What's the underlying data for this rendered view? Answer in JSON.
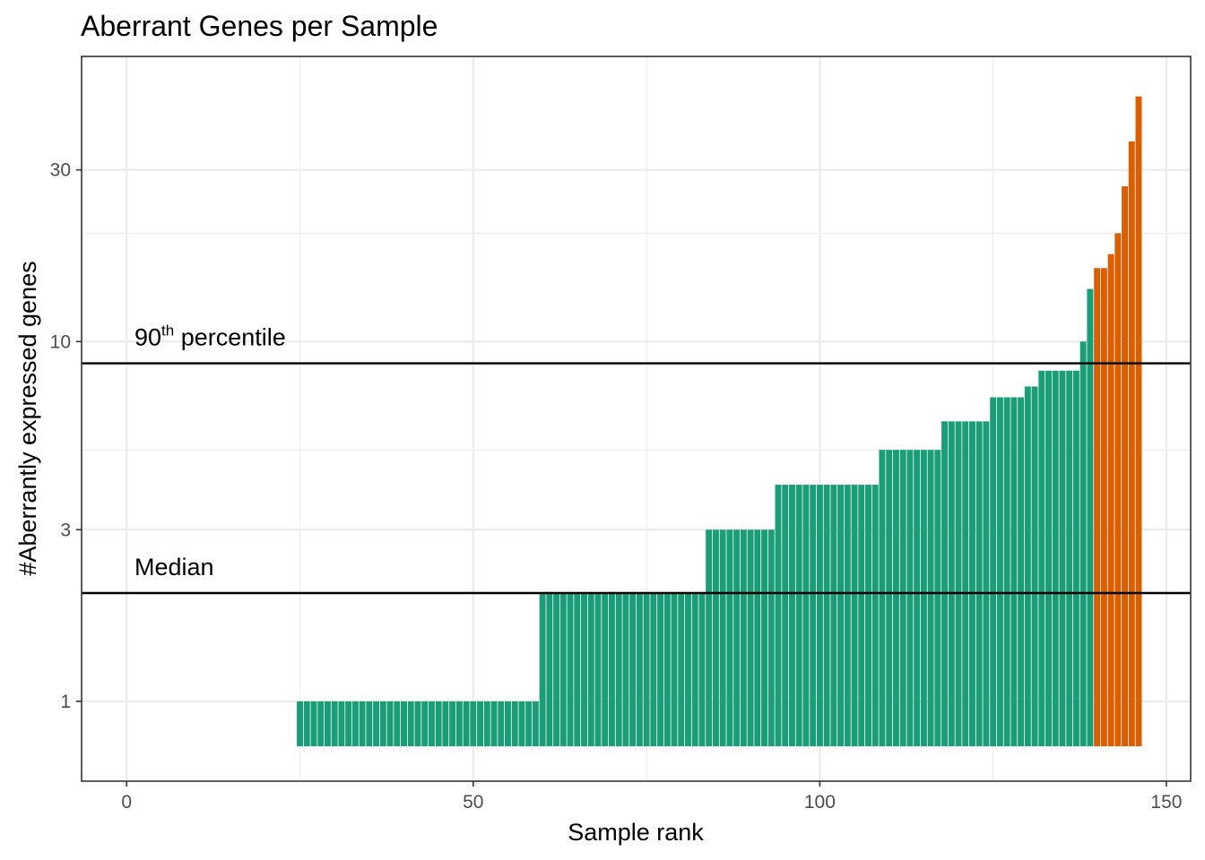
{
  "chart_data": {
    "type": "bar",
    "title": "Aberrant Genes per Sample",
    "xlabel": "Sample rank",
    "ylabel": "#Aberrantly expressed genes",
    "xlim": [
      -6.5,
      153.5
    ],
    "ylim_log": [
      0.6,
      62
    ],
    "y_scale": "log",
    "x_ticks": [
      0,
      50,
      100,
      150
    ],
    "y_ticks": [
      1,
      3,
      10,
      30
    ],
    "y_minor_ticks": [
      2,
      5,
      20
    ],
    "bar_baseline": 0.75,
    "grid": true,
    "colors": {
      "normal": "#1B9E77",
      "aberrant": "#D95F02"
    },
    "series": [
      {
        "range": [
          25,
          59
        ],
        "value": 1,
        "group": "normal"
      },
      {
        "range": [
          60,
          83
        ],
        "value": 2,
        "group": "normal"
      },
      {
        "range": [
          84,
          93
        ],
        "value": 3,
        "group": "normal"
      },
      {
        "range": [
          94,
          108
        ],
        "value": 4,
        "group": "normal"
      },
      {
        "range": [
          109,
          117
        ],
        "value": 5,
        "group": "normal"
      },
      {
        "range": [
          118,
          124
        ],
        "value": 6,
        "group": "normal"
      },
      {
        "range": [
          125,
          129
        ],
        "value": 7,
        "group": "normal"
      },
      {
        "range": [
          130,
          131
        ],
        "value": 7.5,
        "group": "normal"
      },
      {
        "range": [
          132,
          137
        ],
        "value": 8.3,
        "group": "normal"
      },
      {
        "range": [
          138,
          138
        ],
        "value": 10,
        "group": "normal"
      },
      {
        "range": [
          139,
          139
        ],
        "value": 14,
        "group": "normal"
      }
    ],
    "aberrant_values": [
      {
        "x": 140,
        "value": 16
      },
      {
        "x": 141,
        "value": 16
      },
      {
        "x": 142,
        "value": 17.5
      },
      {
        "x": 143,
        "value": 20
      },
      {
        "x": 144,
        "value": 27
      },
      {
        "x": 145,
        "value": 36
      },
      {
        "x": 146,
        "value": 48
      }
    ],
    "reference_lines": [
      {
        "name": "Median",
        "value": 2
      },
      {
        "name": "90",
        "sup": "th",
        "suffix": " percentile",
        "value": 8.7
      }
    ]
  }
}
